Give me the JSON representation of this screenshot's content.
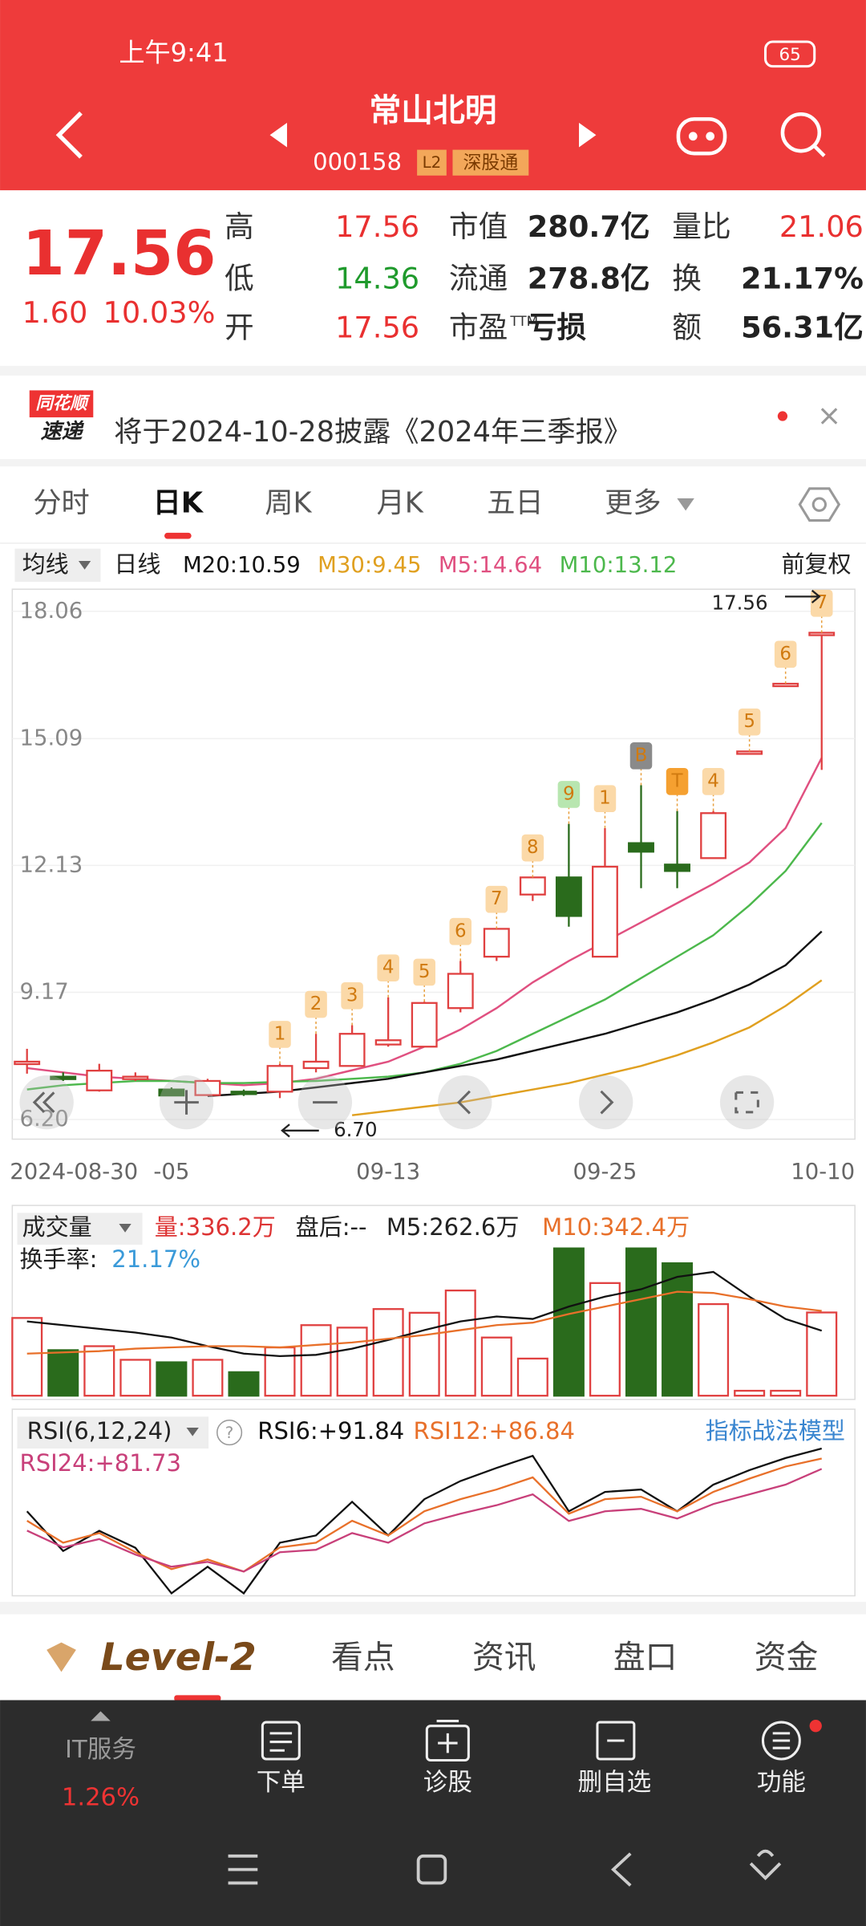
{
  "status_bar": {
    "time": "上午9:41",
    "battery": "65"
  },
  "header": {
    "title": "常山北明",
    "code": "000158",
    "tags": [
      "L2",
      "深股通"
    ]
  },
  "quote": {
    "price": "17.56",
    "change": "1.60",
    "percent": "10.03%",
    "stats": [
      [
        {
          "label": "高",
          "value": "17.56",
          "color": "#e93030"
        },
        {
          "label": "市值",
          "value": "280.7亿"
        },
        {
          "label": "量比",
          "value": "21.06",
          "color": "#e93030"
        }
      ],
      [
        {
          "label": "低",
          "value": "14.36",
          "color": "#1f9a2c"
        },
        {
          "label": "流通",
          "value": "278.8亿"
        },
        {
          "label": "换",
          "value": "21.17%"
        }
      ],
      [
        {
          "label": "开",
          "value": "17.56",
          "color": "#e93030"
        },
        {
          "label": "市盈",
          "suffix": "TTM",
          "value": "亏损"
        },
        {
          "label": "额",
          "value": "56.31亿"
        }
      ]
    ]
  },
  "news": {
    "brand": [
      "同花顺",
      "速递"
    ],
    "text": "将于2024-10-28披露《2024年三季报》"
  },
  "tabs": {
    "items": [
      "分时",
      "日K",
      "周K",
      "月K",
      "五日",
      "更多"
    ],
    "active": 1
  },
  "ma_legend": {
    "selector": "均线",
    "period": "日线",
    "items": [
      {
        "text": "M20:10.59",
        "color": "#111111"
      },
      {
        "text": "M30:9.45",
        "color": "#e0a020"
      },
      {
        "text": "M5:14.64",
        "color": "#e05080"
      },
      {
        "text": "M10:13.12",
        "color": "#4cb84c"
      }
    ],
    "adjust": "前复权"
  },
  "kline": {
    "type": "candlestick",
    "categories": [
      "2024-08-30",
      null,
      null,
      null,
      "-05",
      null,
      null,
      null,
      null,
      null,
      "09-13",
      null,
      null,
      null,
      null,
      null,
      "09-25",
      null,
      null,
      null,
      null,
      null,
      "10-10"
    ],
    "open": [
      7.55,
      7.2,
      6.88,
      7.15,
      6.9,
      6.77,
      6.85,
      6.85,
      7.4,
      7.45,
      7.95,
      7.9,
      8.8,
      10.0,
      11.45,
      11.85,
      10.0,
      12.65,
      12.15,
      12.3,
      14.79,
      16.37,
      17.56
    ],
    "high": [
      7.85,
      7.3,
      7.5,
      7.3,
      6.95,
      7.15,
      6.9,
      7.5,
      8.2,
      8.4,
      9.05,
      8.95,
      9.9,
      10.65,
      11.85,
      13.1,
      13.0,
      14.0,
      13.4,
      13.4,
      14.79,
      16.37,
      17.56
    ],
    "low": [
      7.27,
      7.1,
      6.85,
      7.1,
      6.75,
      6.75,
      6.75,
      6.7,
      7.3,
      7.45,
      7.9,
      7.9,
      8.7,
      9.9,
      11.3,
      10.7,
      10.0,
      11.6,
      11.6,
      12.3,
      14.79,
      16.37,
      14.36
    ],
    "close": [
      7.55,
      7.17,
      7.34,
      7.2,
      6.76,
      7.1,
      6.8,
      7.45,
      7.55,
      8.2,
      8.05,
      8.92,
      9.6,
      10.65,
      11.85,
      10.95,
      12.1,
      12.45,
      12.0,
      13.35,
      14.79,
      16.37,
      17.56
    ],
    "ylim": [
      6.2,
      18.06
    ],
    "yticks": [
      {
        "value": 18.06,
        "label": "18.06"
      },
      {
        "value": 15.09,
        "label": "15.09"
      },
      {
        "value": 12.13,
        "label": "12.13"
      },
      {
        "value": 9.17,
        "label": "9.17"
      },
      {
        "value": 6.2,
        "label": "6.20"
      }
    ],
    "up_color": "#e04040",
    "down_color": "#2a6b1c",
    "ma": [
      {
        "name": "M5",
        "color": "#e05080",
        "values": [
          7.4,
          7.3,
          7.2,
          7.15,
          7.1,
          7.05,
          7.0,
          7.05,
          7.15,
          7.35,
          7.55,
          7.9,
          8.3,
          8.8,
          9.4,
          9.9,
          10.35,
          10.8,
          11.25,
          11.7,
          12.2,
          13.0,
          14.64
        ]
      },
      {
        "name": "M10",
        "color": "#4cb84c",
        "values": [
          6.9,
          7.0,
          7.05,
          7.1,
          7.1,
          7.05,
          7.05,
          7.08,
          7.1,
          7.15,
          7.2,
          7.3,
          7.5,
          7.8,
          8.2,
          8.6,
          9.0,
          9.5,
          10.0,
          10.5,
          11.2,
          12.0,
          13.12
        ]
      },
      {
        "name": "M20",
        "color": "#111111",
        "values": [
          null,
          null,
          null,
          null,
          null,
          6.75,
          6.8,
          6.85,
          6.95,
          7.05,
          7.15,
          7.3,
          7.45,
          7.6,
          7.8,
          8.0,
          8.2,
          8.45,
          8.7,
          9.0,
          9.35,
          9.8,
          10.59
        ]
      },
      {
        "name": "M30",
        "color": "#e0a020",
        "values": [
          null,
          null,
          null,
          null,
          null,
          null,
          null,
          null,
          null,
          6.3,
          6.4,
          6.5,
          6.6,
          6.75,
          6.9,
          7.05,
          7.25,
          7.45,
          7.7,
          8.0,
          8.35,
          8.85,
          9.45
        ]
      }
    ],
    "badges": [
      null,
      null,
      null,
      null,
      null,
      null,
      null,
      {
        "label": "1",
        "color": "#fbd9a8"
      },
      {
        "label": "2",
        "color": "#fbd9a8"
      },
      {
        "label": "3",
        "color": "#fbd9a8"
      },
      {
        "label": "4",
        "color": "#fbd9a8"
      },
      {
        "label": "5",
        "color": "#fbd9a8"
      },
      {
        "label": "6",
        "color": "#fbd9a8"
      },
      {
        "label": "7",
        "color": "#fbd9a8"
      },
      {
        "label": "8",
        "color": "#fbd9a8"
      },
      {
        "label": "9",
        "color": "#b8e6b0"
      },
      {
        "label": "1",
        "color": "#fbd9a8"
      },
      {
        "label": "B",
        "color": "#8a8a8a"
      },
      {
        "label": "T",
        "color": "#f5a030"
      },
      {
        "label": "4",
        "color": "#fbd9a8"
      },
      {
        "label": "5",
        "color": "#fbd9a8"
      },
      {
        "label": "6",
        "color": "#fbd9a8"
      },
      {
        "label": "7",
        "color": "#fbd9a8"
      }
    ],
    "max_label": "17.56",
    "min_label": "6.70"
  },
  "volume": {
    "type": "bar",
    "title": "成交量",
    "amount": "量:336.2万",
    "after": "盘后:--",
    "m5": "M5:262.6万",
    "m10": "M10:342.4万",
    "turnover_label": "换手率:",
    "turnover": "21.17%",
    "values": [
      314,
      184,
      200,
      145,
      135,
      145,
      95,
      195,
      285,
      275,
      350,
      335,
      425,
      235,
      150,
      595,
      455,
      595,
      535,
      370,
      20,
      20,
      336.2
    ],
    "ma": [
      {
        "name": "M5",
        "color": "#111111",
        "values": [
          300,
          285,
          270,
          255,
          235,
          200,
          170,
          160,
          165,
          190,
          225,
          265,
          300,
          320,
          310,
          360,
          400,
          430,
          480,
          500,
          400,
          310,
          262.6
        ]
      },
      {
        "name": "M10",
        "color": "#e8702a",
        "values": [
          170,
          175,
          180,
          190,
          195,
          200,
          200,
          195,
          205,
          215,
          230,
          245,
          265,
          285,
          295,
          330,
          360,
          390,
          420,
          415,
          390,
          360,
          342.4
        ]
      }
    ]
  },
  "rsi": {
    "type": "line",
    "selector": "RSI(6,12,24)",
    "link": "指标战法模型",
    "series": [
      {
        "name": "RSI6:+91.84",
        "color": "#111111",
        "values": [
          60.7,
          41,
          51,
          42.6,
          20,
          33.2,
          20,
          45.1,
          48.7,
          65.4,
          48.7,
          66.7,
          75.7,
          82.2,
          88.2,
          60.7,
          70.3,
          71.5,
          60.7,
          73.9,
          81.1,
          87.1,
          91.84
        ]
      },
      {
        "name": "RSI12:+86.84",
        "color": "#e8702a",
        "values": [
          56,
          45.1,
          49.9,
          40.4,
          32,
          36.8,
          30.8,
          42.8,
          45.1,
          56,
          48.7,
          60.7,
          66.7,
          71.5,
          77.5,
          59.5,
          66.7,
          67.9,
          60.7,
          70.3,
          76.9,
          82.9,
          86.84
        ]
      },
      {
        "name": "RSI24:+81.73",
        "color": "#c8407a",
        "values": [
          51.1,
          42.8,
          46.9,
          39.2,
          33.2,
          35.6,
          30.8,
          40.4,
          41.6,
          49.9,
          45.1,
          54.7,
          59.5,
          63.7,
          69.1,
          55.9,
          60.7,
          61.9,
          57.1,
          64.3,
          69.1,
          73.9,
          81.73
        ]
      }
    ]
  },
  "bottom_tabs": [
    "Level-2",
    "看点",
    "资讯",
    "盘口",
    "资金"
  ],
  "toolbar": {
    "ticker": "IT服务",
    "ticker_change": "1.26%",
    "items": [
      "下单",
      "诊股",
      "删自选",
      "功能"
    ]
  }
}
